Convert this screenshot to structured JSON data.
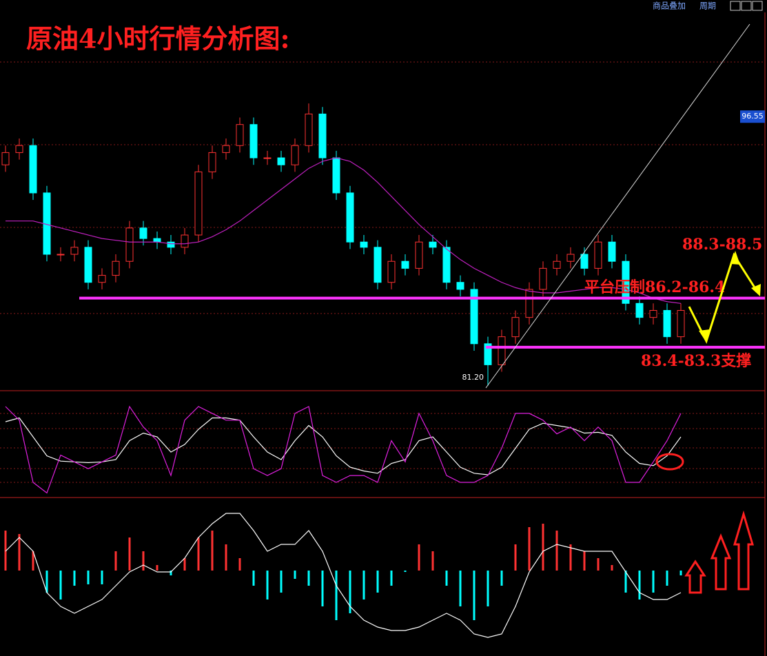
{
  "toolbar": {
    "items": [
      "商品叠加",
      "周期"
    ]
  },
  "chart_data": [
    {
      "type": "candlestick",
      "title": "原油4小时行情分析图:",
      "open": [
        93.8,
        94.5,
        94.9,
        92.2,
        88.7,
        88.7,
        89.1,
        87.1,
        87.5,
        88.3,
        90.2,
        89.6,
        89.4,
        89.1,
        89.8,
        93.4,
        94.5,
        94.9,
        96.1,
        94.2,
        94.2,
        93.8,
        94.9,
        96.7,
        94.2,
        92.2,
        89.4,
        89.1,
        87.1,
        88.3,
        87.9,
        89.4,
        89.1,
        87.1,
        86.7,
        83.6,
        82.4,
        84.0,
        85.1,
        86.7,
        87.9,
        88.3,
        88.7,
        87.9,
        89.4,
        88.3,
        85.9,
        85.1,
        85.5,
        84.0
      ],
      "high": [
        94.9,
        95.3,
        95.3,
        92.6,
        89.1,
        89.5,
        89.5,
        87.9,
        88.7,
        90.6,
        90.6,
        90.0,
        89.8,
        90.2,
        93.8,
        94.9,
        95.3,
        96.5,
        96.5,
        94.6,
        94.6,
        95.3,
        97.3,
        97.1,
        94.6,
        92.6,
        89.8,
        89.5,
        88.7,
        88.7,
        89.8,
        89.8,
        89.5,
        87.5,
        87.1,
        84.0,
        84.4,
        85.5,
        87.1,
        88.3,
        88.7,
        89.1,
        89.1,
        89.8,
        89.8,
        88.7,
        86.3,
        85.9,
        85.9,
        85.9
      ],
      "low": [
        93.4,
        94.1,
        91.8,
        88.3,
        88.3,
        88.3,
        86.7,
        86.7,
        87.1,
        87.9,
        89.2,
        89.0,
        88.7,
        88.7,
        89.4,
        93.0,
        94.1,
        94.5,
        93.8,
        93.8,
        93.4,
        93.4,
        94.5,
        93.8,
        91.8,
        89.0,
        88.7,
        86.7,
        86.7,
        87.5,
        87.5,
        88.7,
        86.7,
        86.3,
        83.2,
        81.2,
        82.0,
        83.6,
        84.7,
        86.3,
        87.5,
        87.9,
        87.5,
        87.5,
        87.9,
        85.5,
        84.7,
        84.7,
        83.6,
        83.6
      ],
      "close": [
        94.5,
        94.9,
        92.2,
        88.7,
        88.7,
        89.1,
        87.1,
        87.5,
        88.3,
        90.2,
        89.6,
        89.4,
        89.1,
        89.8,
        93.4,
        94.5,
        94.9,
        96.1,
        94.2,
        94.2,
        93.8,
        94.9,
        96.7,
        94.2,
        92.2,
        89.4,
        89.1,
        87.1,
        88.3,
        87.9,
        89.4,
        89.1,
        87.1,
        86.7,
        83.6,
        82.4,
        84.0,
        85.1,
        86.7,
        87.9,
        88.3,
        88.7,
        87.9,
        89.4,
        88.3,
        85.9,
        85.1,
        85.5,
        84.0,
        85.5
      ],
      "up_color": "#ff3232",
      "down_color": "#00ffff",
      "ylim": [
        81.0,
        103.2
      ],
      "series": [
        {
          "color": "#c020c0",
          "values": [
            90.6,
            90.6,
            90.6,
            90.4,
            90.2,
            90.0,
            89.8,
            89.6,
            89.5,
            89.4,
            89.4,
            89.4,
            89.3,
            89.3,
            89.4,
            89.7,
            90.1,
            90.6,
            91.2,
            91.8,
            92.4,
            93.0,
            93.6,
            94.0,
            94.2,
            94.0,
            93.5,
            92.8,
            92.0,
            91.2,
            90.4,
            89.7,
            89.0,
            88.4,
            87.9,
            87.5,
            87.1,
            86.8,
            86.6,
            86.5,
            86.5,
            86.6,
            86.7,
            86.8,
            86.8,
            86.7,
            86.5,
            86.2,
            86.0,
            85.9
          ]
        }
      ],
      "price_label": 96.55,
      "low_label": {
        "value": 81.2,
        "label": "81.20"
      },
      "levels": [
        {
          "value": 86.2,
          "color": "#ff33ff"
        },
        {
          "value": 83.4,
          "color": "#ff33ff"
        }
      ],
      "annotations": [
        {
          "text": "88.3-88.5"
        },
        {
          "text": "平台压制86.2-86.4"
        },
        {
          "text": "83.4-83.3支撑"
        }
      ]
    },
    {
      "type": "line",
      "ylim": [
        -20,
        120
      ],
      "series": [
        {
          "color": "#ffffff",
          "values": [
            80,
            85,
            60,
            35,
            28,
            27,
            26,
            27,
            30,
            55,
            65,
            60,
            40,
            50,
            70,
            85,
            85,
            82,
            60,
            40,
            30,
            55,
            75,
            60,
            35,
            20,
            15,
            12,
            25,
            30,
            55,
            60,
            40,
            20,
            12,
            10,
            20,
            45,
            70,
            78,
            75,
            72,
            65,
            66,
            62,
            40,
            25,
            22,
            35,
            60
          ]
        },
        {
          "color": "#e020e0",
          "values": [
            100,
            82,
            0,
            -14,
            36,
            27,
            18,
            27,
            36,
            100,
            73,
            55,
            9,
            82,
            100,
            91,
            82,
            82,
            18,
            9,
            18,
            91,
            100,
            9,
            0,
            9,
            9,
            0,
            55,
            27,
            91,
            55,
            9,
            0,
            0,
            9,
            45,
            91,
            91,
            82,
            64,
            73,
            55,
            73,
            55,
            0,
            0,
            27,
            55,
            91
          ]
        }
      ]
    },
    {
      "type": "bar",
      "ylim": [
        -1.22,
        1.06
      ],
      "up_color": "#ff3232",
      "down_color": "#00ffff",
      "values": [
        0.58,
        0.53,
        0.28,
        -0.32,
        -0.42,
        -0.22,
        -0.2,
        -0.2,
        0.28,
        0.48,
        0.28,
        0.08,
        -0.07,
        0.18,
        0.48,
        0.58,
        0.38,
        0.18,
        -0.22,
        -0.42,
        -0.32,
        -0.12,
        -0.22,
        -0.52,
        -0.72,
        -0.62,
        -0.42,
        -0.32,
        -0.22,
        -0.02,
        0.38,
        0.28,
        -0.22,
        -0.52,
        -0.72,
        -0.52,
        -0.22,
        0.38,
        0.63,
        0.68,
        0.58,
        0.38,
        0.28,
        0.18,
        0.08,
        -0.32,
        -0.42,
        -0.32,
        -0.22,
        -0.07
      ],
      "series": [
        {
          "color": "#ffffff",
          "values": [
            0.28,
            0.48,
            0.28,
            -0.32,
            -0.52,
            -0.62,
            -0.52,
            -0.42,
            -0.22,
            -0.02,
            0.08,
            -0.02,
            -0.02,
            0.18,
            0.48,
            0.68,
            0.83,
            0.83,
            0.58,
            0.28,
            0.38,
            0.38,
            0.58,
            0.28,
            -0.22,
            -0.52,
            -0.72,
            -0.82,
            -0.87,
            -0.87,
            -0.82,
            -0.72,
            -0.62,
            -0.72,
            -0.92,
            -0.97,
            -0.92,
            -0.52,
            -0.02,
            0.28,
            0.38,
            0.33,
            0.28,
            0.28,
            0.28,
            -0.02,
            -0.32,
            -0.42,
            -0.42,
            -0.32
          ]
        }
      ]
    }
  ]
}
